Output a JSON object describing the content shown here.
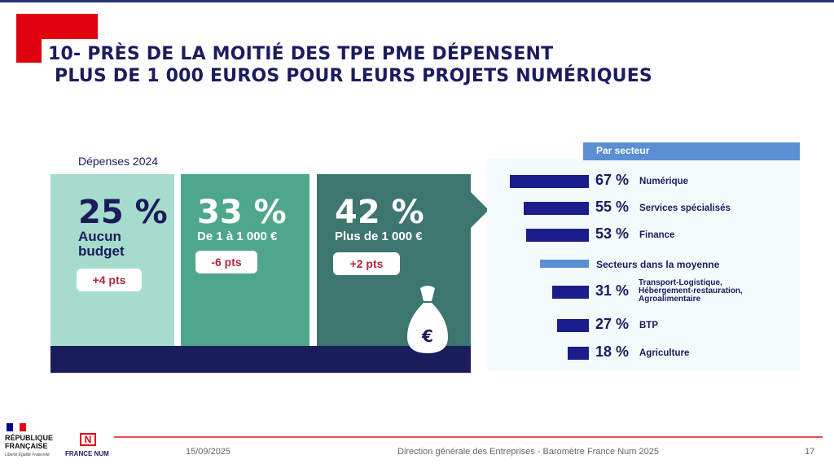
{
  "slide": {
    "title_line1": "10- PRÈS DE LA MOITIÉ DES TPE PME DÉPENSENT",
    "title_line2": "PLUS DE 1 000 EUROS POUR LEURS PROJETS NUMÉRIQUES",
    "depenses_label": "Dépenses 2024"
  },
  "cards": [
    {
      "value": "25 %",
      "label": "Aucun budget",
      "change": "+4 pts"
    },
    {
      "value": "33 %",
      "label": "De 1 à 1 000 €",
      "change": "-6 pts"
    },
    {
      "value": "42 %",
      "label": "Plus de 1 000 €",
      "change": "+2 pts"
    }
  ],
  "sector": {
    "header": "Par secteur",
    "average_label": "Secteurs dans la moyenne"
  },
  "chart_data": [
    {
      "type": "bar",
      "categories": [
        "Aucun budget",
        "De 1 à 1 000 €",
        "Plus de 1 000 €"
      ],
      "values": [
        25,
        33,
        42
      ],
      "changes": [
        "+4 pts",
        "-6 pts",
        "+2 pts"
      ],
      "title": "Dépenses 2024"
    },
    {
      "type": "bar",
      "orientation": "horizontal",
      "title": "Par secteur",
      "categories": [
        "Numérique",
        "Services spécialisés",
        "Finance",
        "Transport-Logistique, Hébergement-restauration, Agroalimentaire",
        "BTP",
        "Agriculture"
      ],
      "values": [
        67,
        55,
        53,
        31,
        27,
        18
      ],
      "value_labels": [
        "67 %",
        "55 %",
        "53 %",
        "31 %",
        "27 %",
        "18 %"
      ],
      "reference_label": "Secteurs dans la moyenne",
      "colors": {
        "bar": "#1a1d8a",
        "reference": "#5b8fd3"
      }
    }
  ],
  "colors": {
    "accent_red": "#e1000f",
    "navy": "#1b1b5e",
    "card_light": "#a6dccb",
    "card_mid": "#4ea78a",
    "card_dark": "#3d756f"
  },
  "footer": {
    "republic_line1": "RÉPUBLIQUE",
    "republic_line2": "FRANÇAISE",
    "motto": "Liberté Égalité Fraternité",
    "francenum_logo": "N",
    "francenum_text": "FRANCE NUM",
    "date": "15/09/2025",
    "source": "Direction générale des Entreprises - Baromètre France Num 2025",
    "page": "17"
  }
}
